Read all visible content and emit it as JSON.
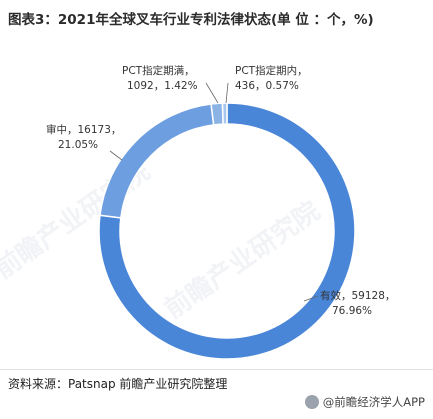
{
  "title": "图表3：2021年全球叉车行业专利法律状态(单 位 ：个，%)",
  "source": "资料来源：Patsnap 前瞻产业研究院整理",
  "brand": "@前瞻经济学人APP",
  "watermark": "前瞻产业研究院",
  "chart_data": {
    "type": "pie",
    "variant": "donut",
    "title": "图表3：2021年全球叉车行业专利法律状态(单 位 ：个，%)",
    "unit": "个，%",
    "slices": [
      {
        "name": "有效",
        "value": 59128,
        "percent": 76.96,
        "color": "#4a86d8",
        "label_line1": "有效，59128，",
        "label_line2": "76.96%"
      },
      {
        "name": "审中",
        "value": 16173,
        "percent": 21.05,
        "color": "#6c9ee0",
        "label_line1": "审中，16173，",
        "label_line2": "21.05%"
      },
      {
        "name": "PCT指定期满",
        "value": 1092,
        "percent": 1.42,
        "color": "#8bb3e6",
        "label_line1": "PCT指定期满，",
        "label_line2": "1092，1.42%"
      },
      {
        "name": "PCT指定期内",
        "value": 436,
        "percent": 0.57,
        "color": "#a9c6ee",
        "label_line1": "PCT指定期内，",
        "label_line2": "436，0.57%"
      }
    ],
    "legend": "none"
  }
}
